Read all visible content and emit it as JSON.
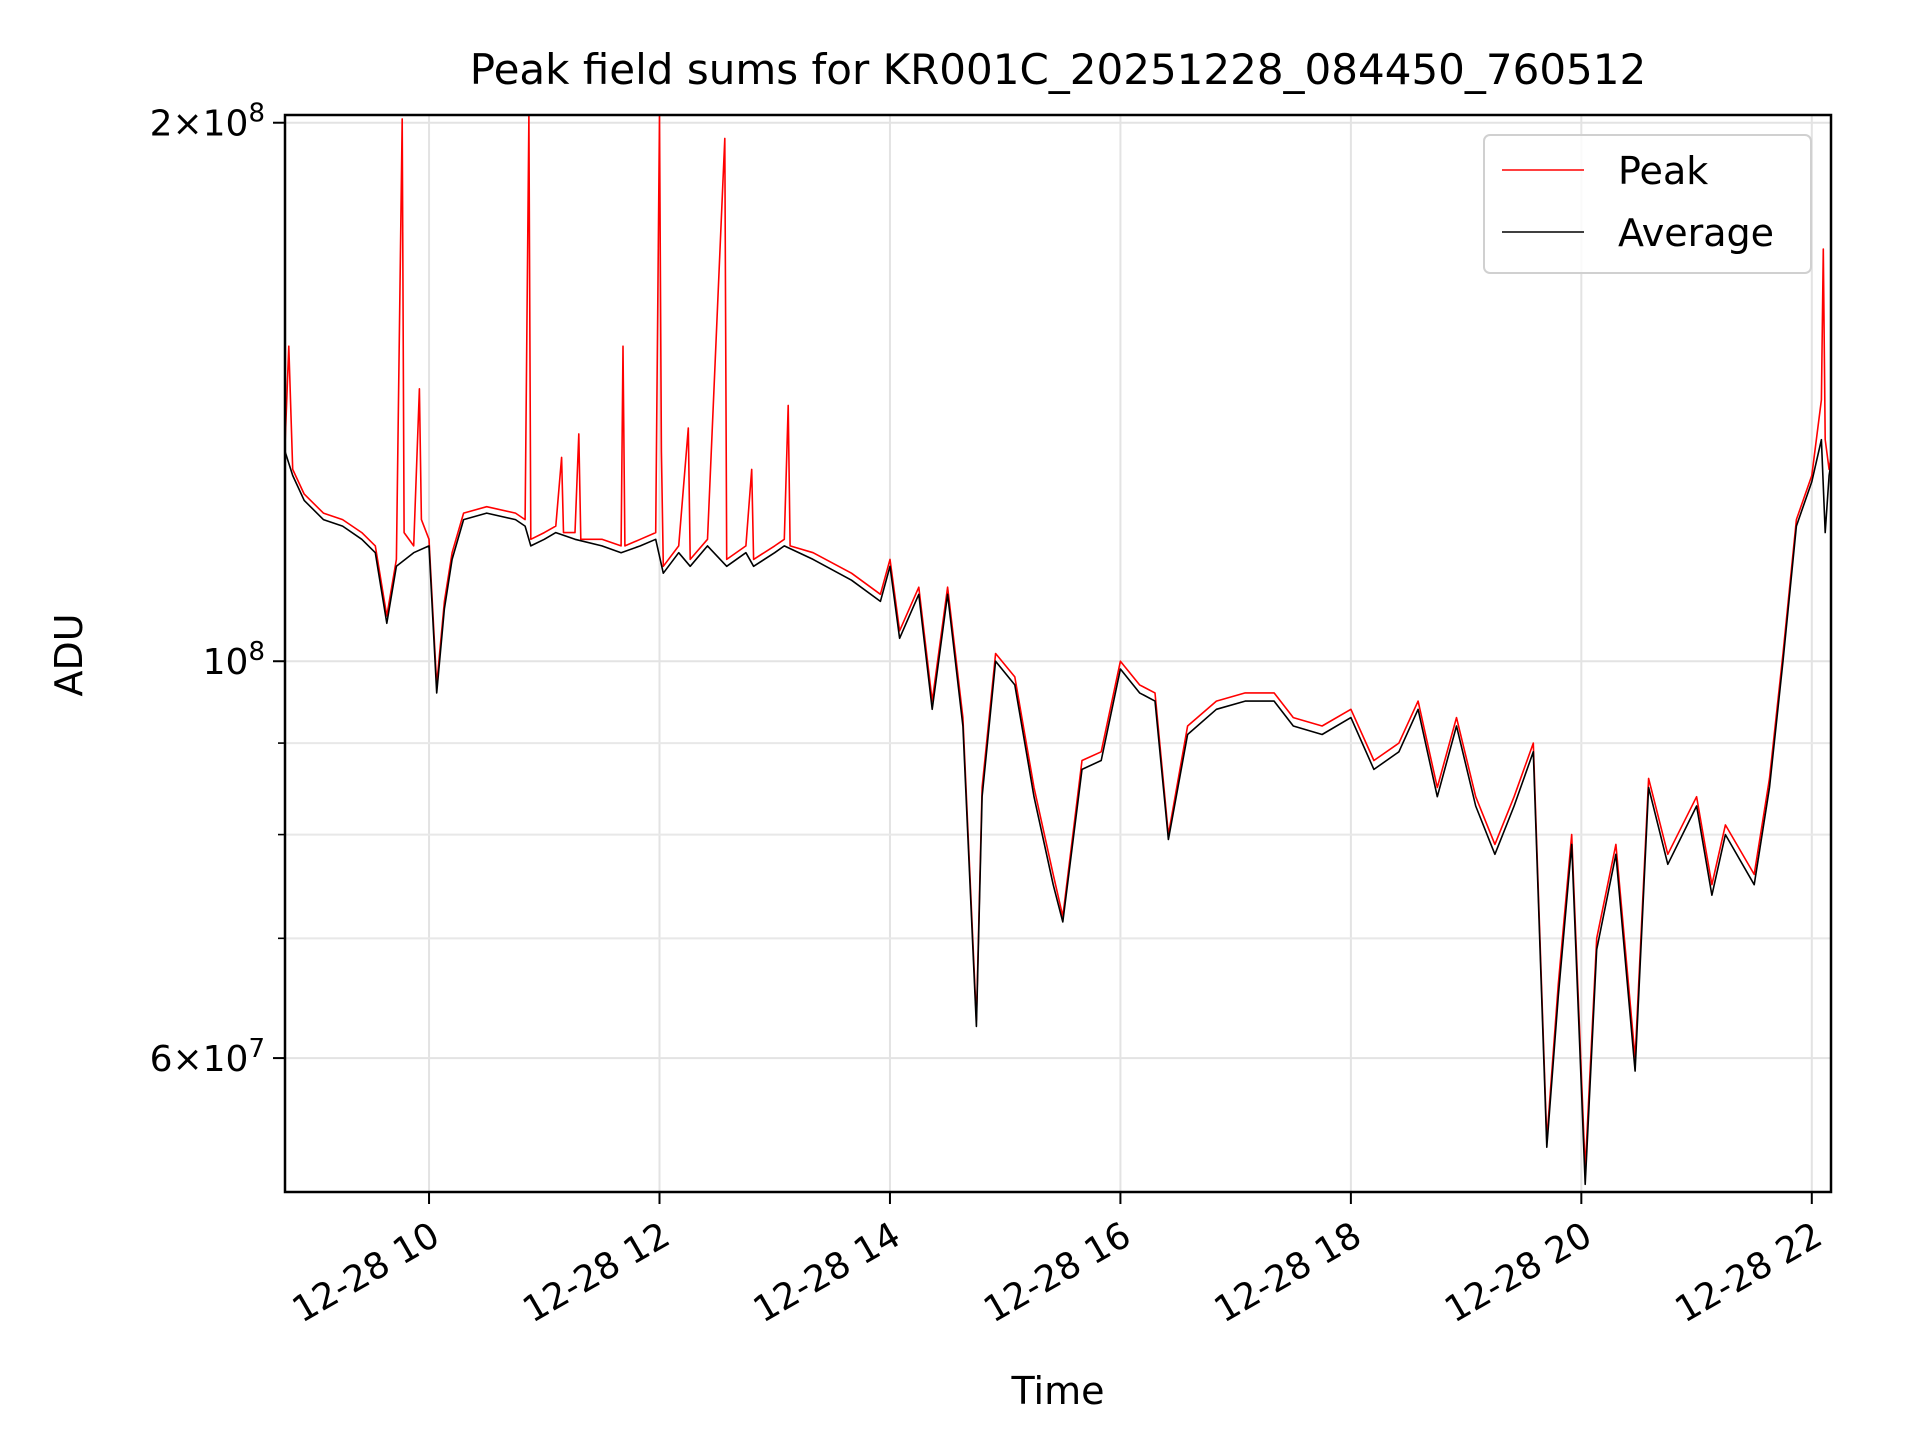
{
  "chart_data": {
    "type": "line",
    "title": "Peak field sums for KR001C_20251228_084450_760512",
    "xlabel": "Time",
    "ylabel": "ADU",
    "yscale": "log",
    "ylim": [
      50500000,
      202000000
    ],
    "xlim": [
      "12-28 08:45",
      "12-28 22:10"
    ],
    "x_ticks": [
      {
        "x": "12-28 10:00",
        "label": "12-28 10"
      },
      {
        "x": "12-28 12:00",
        "label": "12-28 12"
      },
      {
        "x": "12-28 14:00",
        "label": "12-28 14"
      },
      {
        "x": "12-28 16:00",
        "label": "12-28 16"
      },
      {
        "x": "12-28 18:00",
        "label": "12-28 18"
      },
      {
        "x": "12-28 20:00",
        "label": "12-28 20"
      },
      {
        "x": "12-28 22:00",
        "label": "12-28 22"
      }
    ],
    "y_ticks": [
      {
        "y": 200000000,
        "mantissa": "2",
        "exponent": "8"
      },
      {
        "y": 100000000,
        "mantissa": "",
        "exponent": "8"
      },
      {
        "y": 60000000,
        "mantissa": "6",
        "exponent": "7"
      }
    ],
    "y_minor_ticks": [
      70000000,
      80000000,
      90000000
    ],
    "grid": true,
    "legend_position": "top-right",
    "series": [
      {
        "name": "Peak",
        "color": "#ff0000",
        "points": [
          [
            "12-28 08:45",
            132000000
          ],
          [
            "12-28 08:47",
            150000000
          ],
          [
            "12-28 08:49",
            128000000
          ],
          [
            "12-28 08:55",
            124000000
          ],
          [
            "12-28 09:05",
            121000000
          ],
          [
            "12-28 09:15",
            120000000
          ],
          [
            "12-28 09:25",
            118000000
          ],
          [
            "12-28 09:32",
            116000000
          ],
          [
            "12-28 09:38",
            106000000
          ],
          [
            "12-28 09:43",
            114000000
          ],
          [
            "12-28 09:46",
            201000000
          ],
          [
            "12-28 09:47",
            118000000
          ],
          [
            "12-28 09:52",
            116000000
          ],
          [
            "12-28 09:55",
            142000000
          ],
          [
            "12-28 09:56",
            120000000
          ],
          [
            "12-28 10:00",
            117000000
          ],
          [
            "12-28 10:04",
            97000000
          ],
          [
            "12-28 10:08",
            108000000
          ],
          [
            "12-28 10:12",
            115000000
          ],
          [
            "12-28 10:18",
            121000000
          ],
          [
            "12-28 10:30",
            122000000
          ],
          [
            "12-28 10:45",
            121000000
          ],
          [
            "12-28 10:50",
            120000000
          ],
          [
            "12-28 10:52",
            202000000
          ],
          [
            "12-28 10:53",
            117000000
          ],
          [
            "12-28 11:00",
            118000000
          ],
          [
            "12-28 11:06",
            119000000
          ],
          [
            "12-28 11:09",
            130000000
          ],
          [
            "12-28 11:10",
            118000000
          ],
          [
            "12-28 11:16",
            118000000
          ],
          [
            "12-28 11:18",
            134000000
          ],
          [
            "12-28 11:19",
            117000000
          ],
          [
            "12-28 11:30",
            117000000
          ],
          [
            "12-28 11:40",
            116000000
          ],
          [
            "12-28 11:41",
            150000000
          ],
          [
            "12-28 11:42",
            116000000
          ],
          [
            "12-28 11:50",
            117000000
          ],
          [
            "12-28 11:58",
            118000000
          ],
          [
            "12-28 12:00",
            202000000
          ],
          [
            "12-28 12:01",
            131000000
          ],
          [
            "12-28 12:02",
            113000000
          ],
          [
            "12-28 12:10",
            116000000
          ],
          [
            "12-28 12:15",
            135000000
          ],
          [
            "12-28 12:16",
            114000000
          ],
          [
            "12-28 12:25",
            117000000
          ],
          [
            "12-28 12:34",
            196000000
          ],
          [
            "12-28 12:35",
            114000000
          ],
          [
            "12-28 12:45",
            116000000
          ],
          [
            "12-28 12:48",
            128000000
          ],
          [
            "12-28 12:49",
            114000000
          ],
          [
            "12-28 13:00",
            116000000
          ],
          [
            "12-28 13:05",
            117000000
          ],
          [
            "12-28 13:07",
            139000000
          ],
          [
            "12-28 13:08",
            116000000
          ],
          [
            "12-28 13:20",
            115000000
          ],
          [
            "12-28 13:40",
            112000000
          ],
          [
            "12-28 13:55",
            109000000
          ],
          [
            "12-28 14:00",
            114000000
          ],
          [
            "12-28 14:05",
            104000000
          ],
          [
            "12-28 14:15",
            110000000
          ],
          [
            "12-28 14:22",
            95000000
          ],
          [
            "12-28 14:30",
            110000000
          ],
          [
            "12-28 14:38",
            93000000
          ],
          [
            "12-28 14:45",
            63000000
          ],
          [
            "12-28 14:48",
            85000000
          ],
          [
            "12-28 14:55",
            101000000
          ],
          [
            "12-28 15:05",
            98000000
          ],
          [
            "12-28 15:15",
            85000000
          ],
          [
            "12-28 15:25",
            76000000
          ],
          [
            "12-28 15:30",
            72000000
          ],
          [
            "12-28 15:40",
            88000000
          ],
          [
            "12-28 15:50",
            89000000
          ],
          [
            "12-28 16:00",
            100000000
          ],
          [
            "12-28 16:10",
            97000000
          ],
          [
            "12-28 16:18",
            96000000
          ],
          [
            "12-28 16:25",
            80000000
          ],
          [
            "12-28 16:35",
            92000000
          ],
          [
            "12-28 16:50",
            95000000
          ],
          [
            "12-28 17:05",
            96000000
          ],
          [
            "12-28 17:20",
            96000000
          ],
          [
            "12-28 17:30",
            93000000
          ],
          [
            "12-28 17:45",
            92000000
          ],
          [
            "12-28 18:00",
            94000000
          ],
          [
            "12-28 18:12",
            88000000
          ],
          [
            "12-28 18:25",
            90000000
          ],
          [
            "12-28 18:35",
            95000000
          ],
          [
            "12-28 18:45",
            85000000
          ],
          [
            "12-28 18:55",
            93000000
          ],
          [
            "12-28 19:05",
            84000000
          ],
          [
            "12-28 19:15",
            79000000
          ],
          [
            "12-28 19:25",
            84000000
          ],
          [
            "12-28 19:35",
            90000000
          ],
          [
            "12-28 19:42",
            54000000
          ],
          [
            "12-28 19:48",
            66000000
          ],
          [
            "12-28 19:55",
            80000000
          ],
          [
            "12-28 20:02",
            52000000
          ],
          [
            "12-28 20:08",
            70000000
          ],
          [
            "12-28 20:18",
            79000000
          ],
          [
            "12-28 20:28",
            60000000
          ],
          [
            "12-28 20:35",
            86000000
          ],
          [
            "12-28 20:45",
            78000000
          ],
          [
            "12-28 21:00",
            84000000
          ],
          [
            "12-28 21:08",
            75000000
          ],
          [
            "12-28 21:15",
            81000000
          ],
          [
            "12-28 21:30",
            76000000
          ],
          [
            "12-28 21:38",
            86000000
          ],
          [
            "12-28 21:45",
            101000000
          ],
          [
            "12-28 21:52",
            120000000
          ],
          [
            "12-28 22:00",
            127000000
          ],
          [
            "12-28 22:05",
            140000000
          ],
          [
            "12-28 22:06",
            170000000
          ],
          [
            "12-28 22:07",
            133000000
          ],
          [
            "12-28 22:09",
            128000000
          ],
          [
            "12-28 22:10",
            130000000
          ]
        ]
      },
      {
        "name": "Average",
        "color": "#000000",
        "points": [
          [
            "12-28 08:45",
            131000000
          ],
          [
            "12-28 08:49",
            127000000
          ],
          [
            "12-28 08:55",
            123000000
          ],
          [
            "12-28 09:05",
            120000000
          ],
          [
            "12-28 09:15",
            119000000
          ],
          [
            "12-28 09:25",
            117000000
          ],
          [
            "12-28 09:32",
            115000000
          ],
          [
            "12-28 09:38",
            105000000
          ],
          [
            "12-28 09:43",
            113000000
          ],
          [
            "12-28 09:52",
            115000000
          ],
          [
            "12-28 10:00",
            116000000
          ],
          [
            "12-28 10:04",
            96000000
          ],
          [
            "12-28 10:08",
            107000000
          ],
          [
            "12-28 10:12",
            114000000
          ],
          [
            "12-28 10:18",
            120000000
          ],
          [
            "12-28 10:30",
            121000000
          ],
          [
            "12-28 10:45",
            120000000
          ],
          [
            "12-28 10:50",
            119000000
          ],
          [
            "12-28 10:53",
            116000000
          ],
          [
            "12-28 11:00",
            117000000
          ],
          [
            "12-28 11:06",
            118000000
          ],
          [
            "12-28 11:16",
            117000000
          ],
          [
            "12-28 11:30",
            116000000
          ],
          [
            "12-28 11:40",
            115000000
          ],
          [
            "12-28 11:50",
            116000000
          ],
          [
            "12-28 11:58",
            117000000
          ],
          [
            "12-28 12:02",
            112000000
          ],
          [
            "12-28 12:10",
            115000000
          ],
          [
            "12-28 12:16",
            113000000
          ],
          [
            "12-28 12:25",
            116000000
          ],
          [
            "12-28 12:35",
            113000000
          ],
          [
            "12-28 12:45",
            115000000
          ],
          [
            "12-28 12:49",
            113000000
          ],
          [
            "12-28 13:00",
            115000000
          ],
          [
            "12-28 13:05",
            116000000
          ],
          [
            "12-28 13:20",
            114000000
          ],
          [
            "12-28 13:40",
            111000000
          ],
          [
            "12-28 13:55",
            108000000
          ],
          [
            "12-28 14:00",
            113000000
          ],
          [
            "12-28 14:05",
            103000000
          ],
          [
            "12-28 14:15",
            109000000
          ],
          [
            "12-28 14:22",
            94000000
          ],
          [
            "12-28 14:30",
            109000000
          ],
          [
            "12-28 14:38",
            92000000
          ],
          [
            "12-28 14:45",
            62500000
          ],
          [
            "12-28 14:48",
            84000000
          ],
          [
            "12-28 14:55",
            100000000
          ],
          [
            "12-28 15:05",
            97000000
          ],
          [
            "12-28 15:15",
            84000000
          ],
          [
            "12-28 15:25",
            75000000
          ],
          [
            "12-28 15:30",
            71500000
          ],
          [
            "12-28 15:40",
            87000000
          ],
          [
            "12-28 15:50",
            88000000
          ],
          [
            "12-28 16:00",
            99000000
          ],
          [
            "12-28 16:10",
            96000000
          ],
          [
            "12-28 16:18",
            95000000
          ],
          [
            "12-28 16:25",
            79500000
          ],
          [
            "12-28 16:35",
            91000000
          ],
          [
            "12-28 16:50",
            94000000
          ],
          [
            "12-28 17:05",
            95000000
          ],
          [
            "12-28 17:20",
            95000000
          ],
          [
            "12-28 17:30",
            92000000
          ],
          [
            "12-28 17:45",
            91000000
          ],
          [
            "12-28 18:00",
            93000000
          ],
          [
            "12-28 18:12",
            87000000
          ],
          [
            "12-28 18:25",
            89000000
          ],
          [
            "12-28 18:35",
            94000000
          ],
          [
            "12-28 18:45",
            84000000
          ],
          [
            "12-28 18:55",
            92000000
          ],
          [
            "12-28 19:05",
            83000000
          ],
          [
            "12-28 19:15",
            78000000
          ],
          [
            "12-28 19:25",
            83000000
          ],
          [
            "12-28 19:35",
            89000000
          ],
          [
            "12-28 19:42",
            53500000
          ],
          [
            "12-28 19:48",
            65000000
          ],
          [
            "12-28 19:55",
            79000000
          ],
          [
            "12-28 20:02",
            51000000
          ],
          [
            "12-28 20:08",
            69000000
          ],
          [
            "12-28 20:18",
            78000000
          ],
          [
            "12-28 20:28",
            59000000
          ],
          [
            "12-28 20:35",
            85000000
          ],
          [
            "12-28 20:45",
            77000000
          ],
          [
            "12-28 21:00",
            83000000
          ],
          [
            "12-28 21:08",
            74000000
          ],
          [
            "12-28 21:15",
            80000000
          ],
          [
            "12-28 21:30",
            75000000
          ],
          [
            "12-28 21:38",
            85000000
          ],
          [
            "12-28 21:45",
            100000000
          ],
          [
            "12-28 21:52",
            119000000
          ],
          [
            "12-28 22:00",
            126000000
          ],
          [
            "12-28 22:05",
            133000000
          ],
          [
            "12-28 22:07",
            118000000
          ],
          [
            "12-28 22:09",
            127000000
          ],
          [
            "12-28 22:10",
            129000000
          ]
        ]
      }
    ]
  }
}
